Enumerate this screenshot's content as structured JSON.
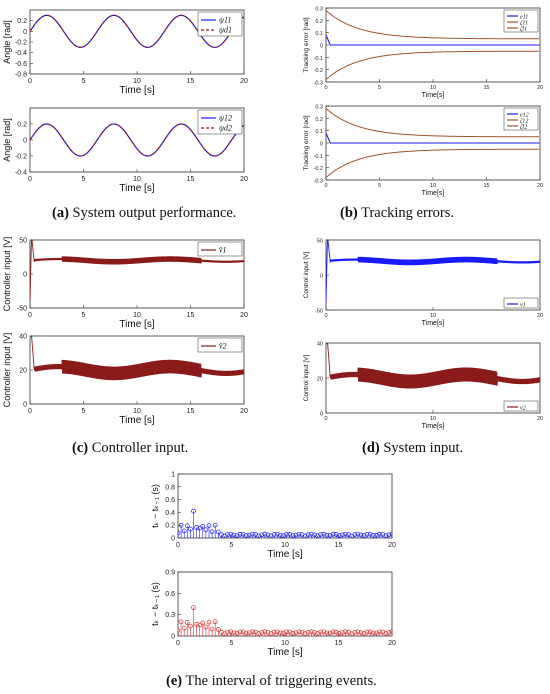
{
  "chart_data": [
    {
      "id": "a_top",
      "type": "line",
      "ylabel": "Angle [rad]",
      "xlabel": "Time [s]",
      "xlim": [
        0,
        20
      ],
      "ylim": [
        -0.8,
        0.4
      ],
      "xticks": [
        "0",
        "5",
        "10",
        "15",
        "20"
      ],
      "yticks": [
        "0.2",
        "0",
        "-0.2",
        "-0.4",
        "-0.6",
        "-0.8"
      ],
      "series": [
        {
          "name": "ψ11",
          "color": "#1a1aff",
          "style": "solid",
          "func": "sine",
          "amp": 0.3,
          "period": 6.28,
          "offset": 0
        },
        {
          "name": "ψd1",
          "color": "#8b1a1a",
          "style": "dashed",
          "func": "sine",
          "amp": 0.3,
          "period": 6.28,
          "offset": 0
        }
      ]
    },
    {
      "id": "a_bottom",
      "type": "line",
      "ylabel": "Angle [rad]",
      "xlabel": "Time [s]",
      "xlim": [
        0,
        20
      ],
      "ylim": [
        -0.4,
        0.4
      ],
      "xticks": [
        "0",
        "5",
        "10",
        "15",
        "20"
      ],
      "yticks": [
        "0.2",
        "0",
        "-0.2",
        "-0.4"
      ],
      "series": [
        {
          "name": "ψ12",
          "color": "#1a1aff",
          "style": "solid",
          "func": "sine",
          "amp": 0.2,
          "period": 6.28,
          "offset": 0
        },
        {
          "name": "ψd2",
          "color": "#8b1a1a",
          "style": "dashed",
          "func": "sine",
          "amp": 0.2,
          "period": 6.28,
          "offset": 0
        }
      ]
    },
    {
      "id": "b_top",
      "type": "line",
      "ylabel": "Tracking error [rad]",
      "xlabel": "Time[s]",
      "xlim": [
        0,
        20
      ],
      "ylim": [
        -0.3,
        0.3
      ],
      "xticks": [
        "0",
        "5",
        "10",
        "15",
        "20"
      ],
      "yticks": [
        "0.3",
        "0.2",
        "0.1",
        "0",
        "-0.1",
        "-0.2",
        "-0.3"
      ],
      "series": [
        {
          "name": "e11",
          "color": "#1a1aff",
          "values_desc": "error ~0 after 0.3s"
        },
        {
          "name": "ζ11",
          "color": "#a0522d",
          "start": 0.28,
          "end": 0.05
        },
        {
          "name": "ζl1",
          "color": "#a0522d",
          "start": -0.28,
          "end": -0.05
        }
      ]
    },
    {
      "id": "b_bottom",
      "type": "line",
      "ylabel": "Tracking error [rad]",
      "xlabel": "Time[s]",
      "xlim": [
        0,
        20
      ],
      "ylim": [
        -0.3,
        0.3
      ],
      "xticks": [
        "0",
        "5",
        "10",
        "15",
        "20"
      ],
      "yticks": [
        "0.3",
        "0.2",
        "0.1",
        "0",
        "-0.1",
        "-0.2",
        "-0.3"
      ],
      "series": [
        {
          "name": "e12",
          "color": "#1a1aff"
        },
        {
          "name": "ζ12",
          "color": "#a0522d",
          "start": 0.28,
          "end": 0.05
        },
        {
          "name": "ζl2",
          "color": "#a0522d",
          "start": -0.28,
          "end": -0.05
        }
      ]
    },
    {
      "id": "c_top",
      "type": "line",
      "ylabel": "Controller input [V]",
      "xlabel": "Time [s]",
      "xlim": [
        0,
        20
      ],
      "ylim": [
        -50,
        50
      ],
      "xticks": [
        "0",
        "5",
        "10",
        "15",
        "20"
      ],
      "yticks": [
        "50",
        "0",
        "-50"
      ],
      "series": [
        {
          "name": "v̂1",
          "color": "#8b1a1a",
          "base": 20
        }
      ]
    },
    {
      "id": "c_bottom",
      "type": "line",
      "ylabel": "Controller input [V]",
      "xlabel": "Time [s]",
      "xlim": [
        0,
        20
      ],
      "ylim": [
        0,
        40
      ],
      "xticks": [
        "0",
        "5",
        "10",
        "15",
        "20"
      ],
      "yticks": [
        "40",
        "20",
        "0"
      ],
      "series": [
        {
          "name": "v̂2",
          "color": "#8b1a1a",
          "base": 20
        }
      ]
    },
    {
      "id": "d_top",
      "type": "line",
      "ylabel": "Control input [V]",
      "xlabel": "Time[s]",
      "xlim": [
        0,
        20
      ],
      "ylim": [
        -50,
        50
      ],
      "xticks": [
        "0",
        "10",
        "20"
      ],
      "yticks": [
        "50",
        "0",
        "-50"
      ],
      "series": [
        {
          "name": "v1",
          "color": "#1a1aff",
          "base": 20
        }
      ]
    },
    {
      "id": "d_bottom",
      "type": "line",
      "ylabel": "Control input [V]",
      "xlabel": "Time[s]",
      "xlim": [
        0,
        20
      ],
      "ylim": [
        0,
        40
      ],
      "xticks": [
        "0",
        "10",
        "20"
      ],
      "yticks": [
        "40",
        "20",
        "0"
      ],
      "series": [
        {
          "name": "v2",
          "color": "#8b1a1a",
          "base": 20
        }
      ]
    },
    {
      "id": "e_top",
      "type": "scatter",
      "ylabel": "tₖ − tₖ₋₁ (s)",
      "xlabel": "Time [s]",
      "xlim": [
        0,
        20
      ],
      "ylim": [
        0,
        1
      ],
      "xticks": [
        "0",
        "5",
        "10",
        "15",
        "20"
      ],
      "yticks": [
        "1",
        "0.8",
        "0.6",
        "0.4",
        "0.2",
        "0"
      ],
      "series": [
        {
          "name": "interval",
          "color": "#1a1aff",
          "peak": 0.42
        }
      ]
    },
    {
      "id": "e_bottom",
      "type": "scatter",
      "ylabel": "tₖ − tₖ₋₁ (s)",
      "xlabel": "Time [s]",
      "xlim": [
        0,
        20
      ],
      "ylim": [
        0,
        0.9
      ],
      "xticks": [
        "0",
        "5",
        "10",
        "15",
        "20"
      ],
      "yticks": [
        "0.9",
        "0.6",
        "0.3",
        "0"
      ],
      "series": [
        {
          "name": "interval",
          "color": "#e03030",
          "peak": 0.4
        }
      ]
    }
  ],
  "captions": {
    "a": {
      "letter": "(a)",
      "text": " System output performance."
    },
    "b": {
      "letter": "(b)",
      "text": " Tracking errors."
    },
    "c": {
      "letter": "(c)",
      "text": " Controller input."
    },
    "d": {
      "letter": "(d)",
      "text": " System input."
    },
    "e": {
      "letter": "(e)",
      "text": " The interval of triggering events."
    }
  }
}
